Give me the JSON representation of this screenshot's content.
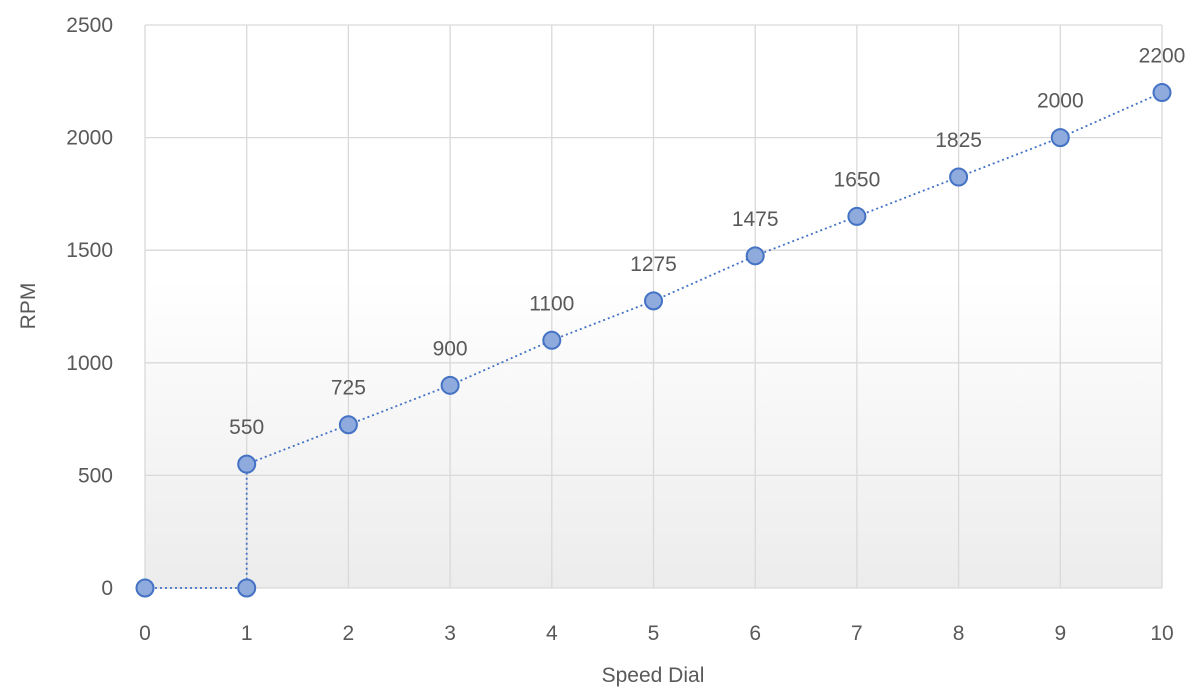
{
  "chart_data": {
    "type": "scatter",
    "xlabel": "Speed Dial",
    "ylabel": "RPM",
    "xlim": [
      0,
      10
    ],
    "ylim": [
      0,
      2500
    ],
    "xticks": [
      0,
      1,
      2,
      3,
      4,
      5,
      6,
      7,
      8,
      9,
      10
    ],
    "yticks": [
      0,
      500,
      1000,
      1500,
      2000,
      2500
    ],
    "grid": true,
    "legend": "none",
    "line_style": "dotted",
    "series": [
      {
        "color": "#4472c4",
        "marker_fill": "#8faadc",
        "points": [
          {
            "x": 0,
            "y": 0,
            "label": ""
          },
          {
            "x": 1,
            "y": 0,
            "label": ""
          },
          {
            "x": 1,
            "y": 550,
            "label": "550"
          },
          {
            "x": 2,
            "y": 725,
            "label": "725"
          },
          {
            "x": 3,
            "y": 900,
            "label": "900"
          },
          {
            "x": 4,
            "y": 1100,
            "label": "1100"
          },
          {
            "x": 5,
            "y": 1275,
            "label": "1275"
          },
          {
            "x": 6,
            "y": 1475,
            "label": "1475"
          },
          {
            "x": 7,
            "y": 1650,
            "label": "1650"
          },
          {
            "x": 8,
            "y": 1825,
            "label": "1825"
          },
          {
            "x": 9,
            "y": 2000,
            "label": "2000"
          },
          {
            "x": 10,
            "y": 2200,
            "label": "2200"
          }
        ]
      }
    ]
  }
}
